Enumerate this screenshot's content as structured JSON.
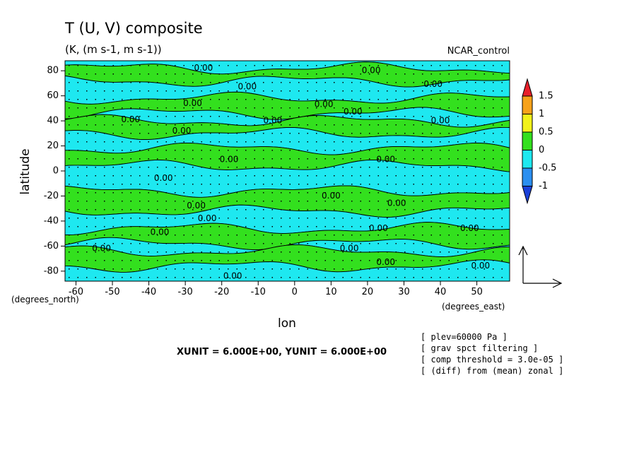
{
  "chart_data": {
    "type": "heatmap",
    "title": "T (U, V) composite",
    "subtitle": "(K, (m s-1, m s-1))",
    "dataset": "NCAR_control",
    "xlabel": "lon",
    "ylabel": "latitude",
    "x_unit": "(degrees_east)",
    "y_unit": "(degrees_north)",
    "xlim": [
      -63,
      59
    ],
    "ylim": [
      -88,
      88
    ],
    "x_ticks": [
      -60,
      -50,
      -40,
      -30,
      -20,
      -10,
      0,
      10,
      20,
      30,
      40,
      50
    ],
    "y_ticks": [
      80,
      60,
      40,
      20,
      0,
      -20,
      -40,
      -60,
      -80
    ],
    "x_tick_labels": [
      "-60",
      "-50",
      "-40",
      "-30",
      "-20",
      "-10",
      "0",
      "10",
      "20",
      "30",
      "40",
      "50"
    ],
    "y_tick_labels": [
      "80",
      "60",
      "40",
      "20",
      "0",
      "-20",
      "-40",
      "-60",
      "-80"
    ],
    "contour_label": "0.00",
    "contour_levels": [
      -1,
      -0.5,
      0,
      0.5,
      1,
      1.5
    ],
    "colorbar": {
      "labels": [
        "1.5",
        "1",
        "0.5",
        "0",
        "-0.5",
        "-1"
      ],
      "colors": [
        "#e8202a",
        "#f7a21a",
        "#f2f21a",
        "#33e01e",
        "#1ee8f0",
        "#2b8ff0",
        "#1a40d8"
      ]
    },
    "field_colors": {
      "positive": "#33e01e",
      "negative": "#1ee8f0"
    },
    "bands": [
      {
        "lat_top": 88,
        "lat_bot": 82,
        "sign": "negative"
      },
      {
        "lat_top": 82,
        "lat_bot": 72,
        "sign": "positive"
      },
      {
        "lat_top": 72,
        "lat_bot": 58,
        "sign": "negative"
      },
      {
        "lat_top": 58,
        "lat_bot": 46,
        "sign": "positive"
      },
      {
        "lat_top": 46,
        "lat_bot": 40,
        "sign": "negative"
      },
      {
        "lat_top": 40,
        "lat_bot": 30,
        "sign": "positive"
      },
      {
        "lat_top": 30,
        "lat_bot": 18,
        "sign": "negative"
      },
      {
        "lat_top": 18,
        "lat_bot": 4,
        "sign": "positive"
      },
      {
        "lat_top": 4,
        "lat_bot": -16,
        "sign": "negative"
      },
      {
        "lat_top": -16,
        "lat_bot": -32,
        "sign": "positive"
      },
      {
        "lat_top": -32,
        "lat_bot": -46,
        "sign": "negative"
      },
      {
        "lat_top": -46,
        "lat_bot": -58,
        "sign": "positive"
      },
      {
        "lat_top": -58,
        "lat_bot": -64,
        "sign": "negative"
      },
      {
        "lat_top": -64,
        "lat_bot": -76,
        "sign": "positive"
      },
      {
        "lat_top": -76,
        "lat_bot": -88,
        "sign": "negative"
      }
    ],
    "contour_label_positions": [
      {
        "lon": -25,
        "lat": 82
      },
      {
        "lon": 21,
        "lat": 80
      },
      {
        "lon": -13,
        "lat": 67
      },
      {
        "lon": 38,
        "lat": 69
      },
      {
        "lon": -28,
        "lat": 54
      },
      {
        "lon": 8,
        "lat": 53
      },
      {
        "lon": 16,
        "lat": 47
      },
      {
        "lon": -45,
        "lat": 41
      },
      {
        "lon": -6,
        "lat": 40
      },
      {
        "lon": 40,
        "lat": 40
      },
      {
        "lon": -31,
        "lat": 32
      },
      {
        "lon": -18,
        "lat": 9
      },
      {
        "lon": 25,
        "lat": 9
      },
      {
        "lon": -36,
        "lat": -6
      },
      {
        "lon": 10,
        "lat": -20
      },
      {
        "lon": 28,
        "lat": -26
      },
      {
        "lon": -27,
        "lat": -28
      },
      {
        "lon": -24,
        "lat": -38
      },
      {
        "lon": -37,
        "lat": -49
      },
      {
        "lon": 23,
        "lat": -46
      },
      {
        "lon": 48,
        "lat": -46
      },
      {
        "lon": -53,
        "lat": -62
      },
      {
        "lon": 15,
        "lat": -62
      },
      {
        "lon": 25,
        "lat": -73
      },
      {
        "lon": 51,
        "lat": -76
      },
      {
        "lon": -17,
        "lat": -84
      }
    ]
  },
  "vector_reference": {
    "xunit": "6.000E+00",
    "yunit": "6.000E+00"
  },
  "annotations": {
    "unit_line": "XUNIT = 6.000E+00, YUNIT = 6.000E+00",
    "info": [
      "[ plev=60000 Pa ]",
      "[ grav spct filtering ]",
      "[ comp threshold = 3.0e-05 ]",
      "[ (diff) from (mean) zonal ]"
    ]
  }
}
